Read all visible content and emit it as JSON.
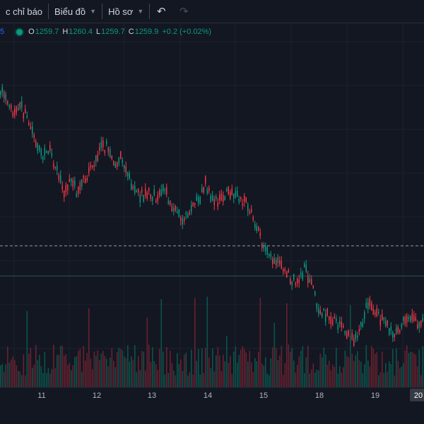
{
  "toolbar": {
    "indicators_label": "c chỉ báo",
    "chart_label": "Biểu đồ",
    "profile_label": "Hồ sơ"
  },
  "legend": {
    "prefix": "5",
    "open_key": "O",
    "open": "1259.7",
    "high_key": "H",
    "high": "1260.4",
    "low_key": "L",
    "low": "1259.7",
    "close_key": "C",
    "close": "1259.9",
    "change": "+0.2 (+0.02%)"
  },
  "colors": {
    "up": "#089981",
    "down": "#f23645",
    "grid": "#1e222d",
    "background": "#131722"
  },
  "chart_data": {
    "type": "candlestick",
    "x_tick_labels": [
      "11",
      "12",
      "13",
      "14",
      "15",
      "18",
      "19",
      "20"
    ],
    "price_line_value": 1259.9,
    "reference_line_value": 1257.2,
    "y_range": [
      1252,
      1276
    ],
    "trend": [
      [
        0,
        1274.0
      ],
      [
        10,
        1272.4
      ],
      [
        20,
        1271.5
      ],
      [
        30,
        1272.2
      ],
      [
        40,
        1271.0
      ],
      [
        50,
        1268.8
      ],
      [
        60,
        1268.0
      ],
      [
        70,
        1268.2
      ],
      [
        80,
        1266.6
      ],
      [
        90,
        1264.8
      ],
      [
        100,
        1265.6
      ],
      [
        110,
        1264.6
      ],
      [
        120,
        1266.0
      ],
      [
        130,
        1267.0
      ],
      [
        140,
        1268.6
      ],
      [
        150,
        1268.8
      ],
      [
        160,
        1267.4
      ],
      [
        170,
        1267.6
      ],
      [
        180,
        1266.2
      ],
      [
        190,
        1265.0
      ],
      [
        200,
        1264.4
      ],
      [
        210,
        1264.8
      ],
      [
        220,
        1264.2
      ],
      [
        230,
        1265.0
      ],
      [
        240,
        1263.9
      ],
      [
        250,
        1262.8
      ],
      [
        260,
        1262.3
      ],
      [
        270,
        1263.0
      ],
      [
        280,
        1264.0
      ],
      [
        290,
        1265.4
      ],
      [
        300,
        1263.8
      ],
      [
        310,
        1264.0
      ],
      [
        320,
        1264.8
      ],
      [
        330,
        1264.5
      ],
      [
        340,
        1264.2
      ],
      [
        350,
        1263.4
      ],
      [
        360,
        1262.0
      ],
      [
        370,
        1260.0
      ],
      [
        380,
        1258.8
      ],
      [
        390,
        1258.5
      ],
      [
        400,
        1258.0
      ],
      [
        410,
        1257.0
      ],
      [
        420,
        1256.8
      ],
      [
        430,
        1257.8
      ],
      [
        440,
        1256.5
      ],
      [
        450,
        1254.4
      ],
      [
        460,
        1253.8
      ],
      [
        470,
        1253.4
      ],
      [
        480,
        1252.6
      ],
      [
        490,
        1252.0
      ],
      [
        500,
        1251.4
      ],
      [
        510,
        1252.6
      ],
      [
        520,
        1254.8
      ],
      [
        530,
        1253.8
      ],
      [
        540,
        1253.2
      ],
      [
        550,
        1252.4
      ],
      [
        560,
        1252.2
      ],
      [
        570,
        1253.2
      ],
      [
        580,
        1253.6
      ],
      [
        590,
        1253.0
      ],
      [
        600,
        1253.6
      ]
    ]
  }
}
